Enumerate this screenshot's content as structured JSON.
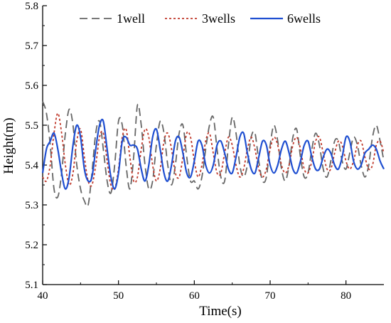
{
  "chart_data": {
    "type": "line",
    "title": "",
    "xlabel": "Time(s)",
    "ylabel": "Height(m)",
    "xlim": [
      40,
      85
    ],
    "ylim": [
      5.1,
      5.8
    ],
    "xticks": [
      "40",
      "50",
      "60",
      "70",
      "80"
    ],
    "yticks": [
      "5.1",
      "5.2",
      "5.3",
      "5.4",
      "5.5",
      "5.6",
      "5.7",
      "5.8"
    ],
    "legend_position": "top",
    "grid": false,
    "series": [
      {
        "name": "1well",
        "color": "#666666",
        "style": "dashed",
        "x": [
          40,
          40.5,
          41,
          41.5,
          42,
          42.5,
          43,
          43.5,
          44,
          44.5,
          45,
          45.5,
          46,
          46.5,
          47,
          47.5,
          48,
          48.5,
          49,
          49.5,
          50,
          50.5,
          51,
          51.5,
          52,
          52.5,
          53,
          53.5,
          54,
          54.5,
          55,
          55.5,
          56,
          56.5,
          57,
          57.5,
          58,
          58.5,
          59,
          59.5,
          60,
          60.5,
          61,
          61.5,
          62,
          62.5,
          63,
          63.5,
          64,
          64.5,
          65,
          65.5,
          66,
          66.5,
          67,
          67.5,
          68,
          68.5,
          69,
          69.5,
          70,
          70.5,
          71,
          71.5,
          72,
          72.5,
          73,
          73.5,
          74,
          74.5,
          75,
          75.5,
          76,
          76.5,
          77,
          77.5,
          78,
          78.5,
          79,
          79.5,
          80,
          80.5,
          81,
          81.5,
          82,
          82.5,
          83,
          83.5,
          84,
          84.5,
          85
        ],
        "values": [
          5.56,
          5.53,
          5.45,
          5.34,
          5.32,
          5.38,
          5.48,
          5.54,
          5.5,
          5.4,
          5.34,
          5.31,
          5.3,
          5.38,
          5.48,
          5.51,
          5.44,
          5.36,
          5.33,
          5.4,
          5.51,
          5.5,
          5.4,
          5.34,
          5.42,
          5.55,
          5.5,
          5.4,
          5.34,
          5.36,
          5.45,
          5.51,
          5.48,
          5.4,
          5.35,
          5.4,
          5.48,
          5.5,
          5.42,
          5.36,
          5.36,
          5.34,
          5.37,
          5.44,
          5.5,
          5.52,
          5.44,
          5.37,
          5.36,
          5.45,
          5.52,
          5.48,
          5.4,
          5.37,
          5.4,
          5.47,
          5.48,
          5.41,
          5.36,
          5.37,
          5.45,
          5.5,
          5.46,
          5.39,
          5.36,
          5.4,
          5.47,
          5.49,
          5.42,
          5.37,
          5.38,
          5.44,
          5.48,
          5.45,
          5.39,
          5.37,
          5.41,
          5.46,
          5.46,
          5.41,
          5.39,
          5.43,
          5.47,
          5.45,
          5.4,
          5.37,
          5.4,
          5.47,
          5.5,
          5.46,
          5.41
        ]
      },
      {
        "name": "3wells",
        "color": "#c0392b",
        "style": "dotted",
        "x": [
          40,
          40.5,
          41,
          41.5,
          42,
          42.5,
          43,
          43.5,
          44,
          44.5,
          45,
          45.5,
          46,
          46.5,
          47,
          47.5,
          48,
          48.5,
          49,
          49.5,
          50,
          50.5,
          51,
          51.5,
          52,
          52.5,
          53,
          53.5,
          54,
          54.5,
          55,
          55.5,
          56,
          56.5,
          57,
          57.5,
          58,
          58.5,
          59,
          59.5,
          60,
          60.5,
          61,
          61.5,
          62,
          62.5,
          63,
          63.5,
          64,
          64.5,
          65,
          65.5,
          66,
          66.5,
          67,
          67.5,
          68,
          68.5,
          69,
          69.5,
          70,
          70.5,
          71,
          71.5,
          72,
          72.5,
          73,
          73.5,
          74,
          74.5,
          75,
          75.5,
          76,
          76.5,
          77,
          77.5,
          78,
          78.5,
          79,
          79.5,
          80,
          80.5,
          81,
          81.5,
          82,
          82.5,
          83,
          83.5,
          84,
          84.5,
          85
        ],
        "values": [
          5.37,
          5.36,
          5.4,
          5.48,
          5.53,
          5.48,
          5.4,
          5.35,
          5.38,
          5.46,
          5.49,
          5.42,
          5.36,
          5.35,
          5.4,
          5.47,
          5.48,
          5.41,
          5.35,
          5.34,
          5.39,
          5.47,
          5.49,
          5.42,
          5.36,
          5.37,
          5.44,
          5.49,
          5.47,
          5.4,
          5.36,
          5.39,
          5.46,
          5.48,
          5.44,
          5.38,
          5.37,
          5.42,
          5.48,
          5.47,
          5.41,
          5.37,
          5.4,
          5.46,
          5.48,
          5.43,
          5.38,
          5.38,
          5.43,
          5.47,
          5.45,
          5.4,
          5.37,
          5.39,
          5.44,
          5.47,
          5.44,
          5.39,
          5.37,
          5.39,
          5.44,
          5.47,
          5.45,
          5.4,
          5.38,
          5.4,
          5.45,
          5.47,
          5.44,
          5.39,
          5.38,
          5.41,
          5.46,
          5.47,
          5.43,
          5.39,
          5.39,
          5.43,
          5.46,
          5.45,
          5.41,
          5.39,
          5.41,
          5.45,
          5.46,
          5.42,
          5.39,
          5.4,
          5.45,
          5.46,
          5.43
        ]
      },
      {
        "name": "6wells",
        "color": "#1f4fd1",
        "style": "solid",
        "x": [
          40,
          40.5,
          41,
          41.5,
          42,
          42.5,
          43,
          43.5,
          44,
          44.5,
          45,
          45.5,
          46,
          46.5,
          47,
          47.5,
          48,
          48.5,
          49,
          49.5,
          50,
          50.5,
          51,
          51.5,
          52,
          52.5,
          53,
          53.5,
          54,
          54.5,
          55,
          55.5,
          56,
          56.5,
          57,
          57.5,
          58,
          58.5,
          59,
          59.5,
          60,
          60.5,
          61,
          61.5,
          62,
          62.5,
          63,
          63.5,
          64,
          64.5,
          65,
          65.5,
          66,
          66.5,
          67,
          67.5,
          68,
          68.5,
          69,
          69.5,
          70,
          70.5,
          71,
          71.5,
          72,
          72.5,
          73,
          73.5,
          74,
          74.5,
          75,
          75.5,
          76,
          76.5,
          77,
          77.5,
          78,
          78.5,
          79,
          79.5,
          80,
          80.5,
          81,
          81.5,
          82,
          82.5,
          83,
          83.5,
          84,
          84.5,
          85
        ],
        "values": [
          5.38,
          5.44,
          5.46,
          5.48,
          5.44,
          5.38,
          5.34,
          5.37,
          5.45,
          5.5,
          5.47,
          5.39,
          5.36,
          5.37,
          5.44,
          5.5,
          5.51,
          5.44,
          5.37,
          5.34,
          5.38,
          5.46,
          5.47,
          5.45,
          5.45,
          5.44,
          5.39,
          5.36,
          5.4,
          5.47,
          5.49,
          5.44,
          5.38,
          5.36,
          5.4,
          5.46,
          5.47,
          5.43,
          5.38,
          5.37,
          5.41,
          5.46,
          5.45,
          5.4,
          5.38,
          5.4,
          5.45,
          5.46,
          5.43,
          5.39,
          5.38,
          5.42,
          5.47,
          5.48,
          5.43,
          5.39,
          5.38,
          5.42,
          5.46,
          5.45,
          5.4,
          5.38,
          5.4,
          5.44,
          5.46,
          5.43,
          5.39,
          5.38,
          5.41,
          5.45,
          5.46,
          5.42,
          5.39,
          5.39,
          5.42,
          5.44,
          5.43,
          5.4,
          5.39,
          5.42,
          5.47,
          5.46,
          5.41,
          5.39,
          5.4,
          5.43,
          5.44,
          5.45,
          5.44,
          5.41,
          5.39
        ]
      }
    ]
  }
}
